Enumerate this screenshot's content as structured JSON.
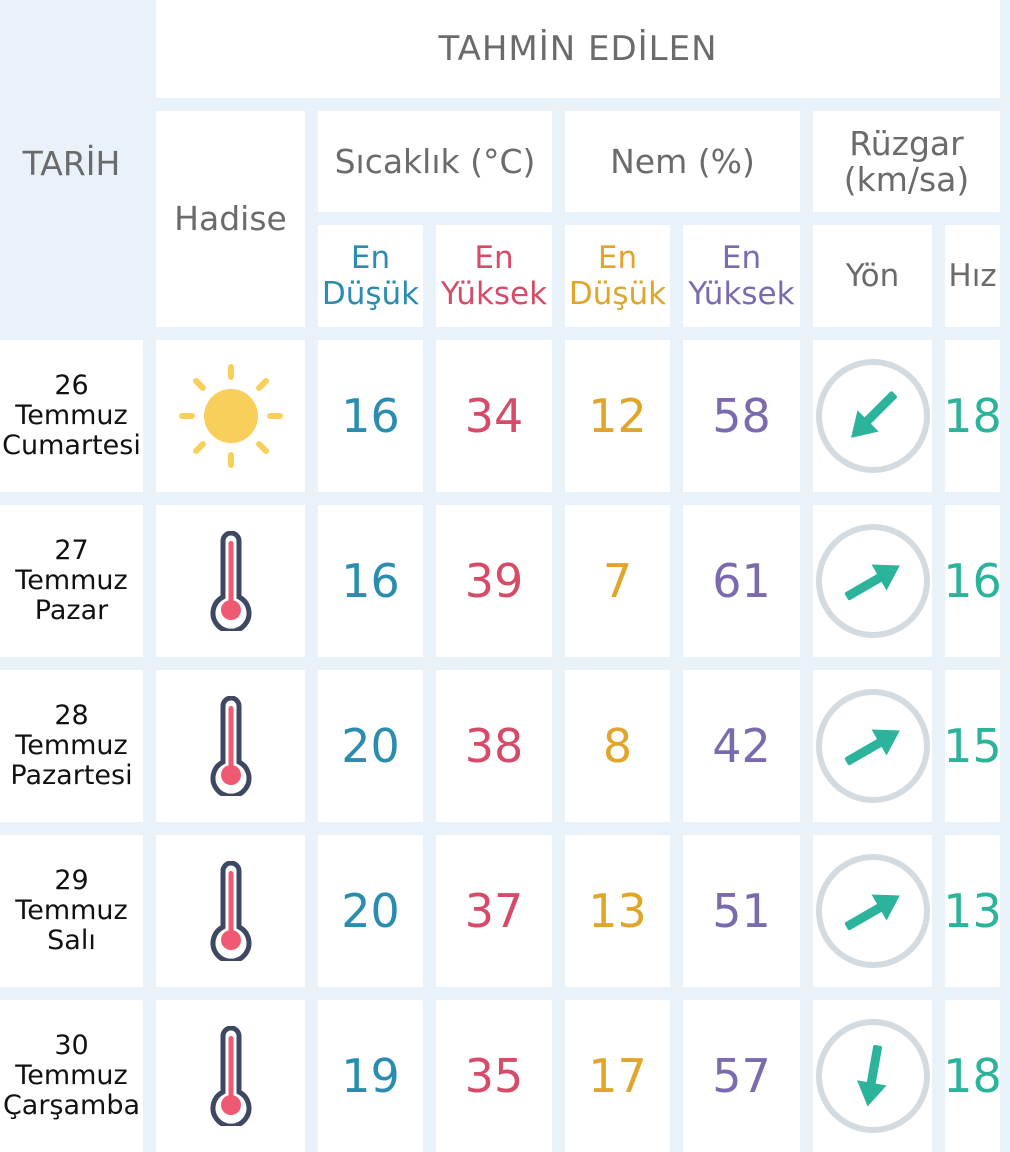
{
  "header": {
    "forecast_title": "TAHMİN EDİLEN",
    "date_col": "TARİH",
    "event_col": "Hadise",
    "temp_col": "Sıcaklık (°C)",
    "humidity_col": "Nem (%)",
    "wind_col_line1": "Rüzgar",
    "wind_col_line2": "(km/sa)",
    "min_en": "En",
    "min_word": "Düşük",
    "max_en": "En",
    "max_word": "Yüksek",
    "direction": "Yön",
    "speed": "Hız"
  },
  "colors": {
    "min": "#2a8db0",
    "max": "#d64b68",
    "hum_min": "#e0a52a",
    "hum_max": "#7b6aae",
    "wind": "#2bb39b",
    "ring": "#d3dbe1",
    "sun": "#f9cf5b"
  },
  "rows": [
    {
      "day": "26",
      "month": "Temmuz",
      "weekday": "Cumartesi",
      "event_icon": "sun-icon",
      "temp_min": "16",
      "temp_max": "34",
      "hum_min": "12",
      "hum_max": "58",
      "wind_dir_icon": "arrow-southwest-icon",
      "wind_speed": "18"
    },
    {
      "day": "27",
      "month": "Temmuz",
      "weekday": "Pazar",
      "event_icon": "thermometer-icon",
      "temp_min": "16",
      "temp_max": "39",
      "hum_min": "7",
      "hum_max": "61",
      "wind_dir_icon": "arrow-northeast-icon",
      "wind_speed": "16"
    },
    {
      "day": "28",
      "month": "Temmuz",
      "weekday": "Pazartesi",
      "event_icon": "thermometer-icon",
      "temp_min": "20",
      "temp_max": "38",
      "hum_min": "8",
      "hum_max": "42",
      "wind_dir_icon": "arrow-northeast-icon",
      "wind_speed": "15"
    },
    {
      "day": "29",
      "month": "Temmuz",
      "weekday": "Salı",
      "event_icon": "thermometer-icon",
      "temp_min": "20",
      "temp_max": "37",
      "hum_min": "13",
      "hum_max": "51",
      "wind_dir_icon": "arrow-northeast-icon",
      "wind_speed": "13"
    },
    {
      "day": "30",
      "month": "Temmuz",
      "weekday": "Çarşamba",
      "event_icon": "thermometer-icon",
      "temp_min": "19",
      "temp_max": "35",
      "hum_min": "17",
      "hum_max": "57",
      "wind_dir_icon": "arrow-south-icon",
      "wind_speed": "18"
    }
  ]
}
